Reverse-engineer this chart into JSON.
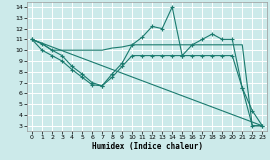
{
  "background_color": "#cceaea",
  "grid_color": "#ffffff",
  "line_color": "#1a7a6e",
  "xlabel": "Humidex (Indice chaleur)",
  "xlim": [
    -0.5,
    23.5
  ],
  "ylim": [
    2.5,
    14.5
  ],
  "xticks": [
    0,
    1,
    2,
    3,
    4,
    5,
    6,
    7,
    8,
    9,
    10,
    11,
    12,
    13,
    14,
    15,
    16,
    17,
    18,
    19,
    20,
    21,
    22,
    23
  ],
  "yticks": [
    3,
    4,
    5,
    6,
    7,
    8,
    9,
    10,
    11,
    12,
    13,
    14
  ],
  "series": [
    {
      "x": [
        0,
        1,
        2,
        3,
        4,
        5,
        6,
        7,
        8,
        9,
        10,
        11,
        12,
        13,
        14,
        15,
        16,
        17,
        18,
        19,
        20,
        21,
        22,
        23
      ],
      "y": [
        11,
        10.6,
        10,
        9.5,
        8.5,
        7.8,
        7.0,
        6.7,
        7.8,
        8.8,
        10.5,
        11.2,
        12.2,
        12.0,
        14.0,
        9.5,
        10.5,
        11.0,
        11.5,
        11.0,
        11.0,
        6.5,
        4.4,
        3.0
      ],
      "marker": true
    },
    {
      "x": [
        0,
        1,
        2,
        3,
        4,
        5,
        6,
        7,
        8,
        9,
        10,
        11,
        12,
        13,
        14,
        15,
        16,
        17,
        18,
        19,
        20,
        21,
        22,
        23
      ],
      "y": [
        11,
        10.6,
        10.0,
        10.0,
        10.0,
        10.0,
        10.0,
        10.0,
        10.2,
        10.3,
        10.5,
        10.5,
        10.5,
        10.5,
        10.5,
        10.5,
        10.5,
        10.5,
        10.5,
        10.5,
        10.5,
        10.5,
        3.0,
        3.0
      ],
      "marker": false
    },
    {
      "x": [
        0,
        1,
        2,
        3,
        4,
        5,
        6,
        7,
        8,
        9,
        10,
        11,
        12,
        13,
        14,
        15,
        16,
        17,
        18,
        19,
        20,
        21,
        22,
        23
      ],
      "y": [
        11,
        10.0,
        9.5,
        9.0,
        8.2,
        7.5,
        6.8,
        6.7,
        7.5,
        8.5,
        9.5,
        9.5,
        9.5,
        9.5,
        9.5,
        9.5,
        9.5,
        9.5,
        9.5,
        9.5,
        9.5,
        6.5,
        3.0,
        3.0
      ],
      "marker": true
    },
    {
      "x": [
        0,
        23
      ],
      "y": [
        11,
        3.0
      ],
      "marker": false
    }
  ]
}
